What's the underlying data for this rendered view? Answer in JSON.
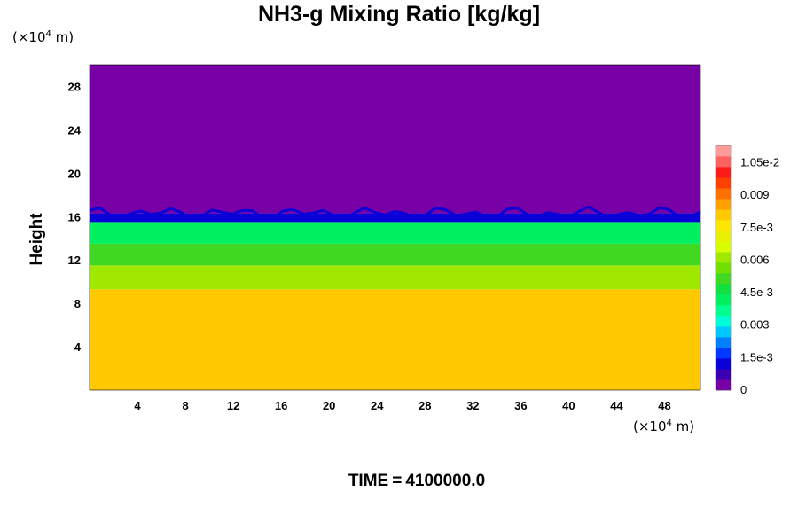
{
  "title": "NH3-g Mixing Ratio [kg/kg]",
  "x_unit": {
    "prefix": "(×10",
    "exp": "4",
    "suffix": " m)"
  },
  "y_unit": {
    "prefix": "(×10",
    "exp": "4",
    "suffix": " m)"
  },
  "ylabel": "Height",
  "time": {
    "label": "TIME",
    "eq": "=",
    "value": "4100000.0"
  },
  "chart_data": {
    "type": "heatmap",
    "title": "NH3-g Mixing Ratio [kg/kg]",
    "xlabel": "",
    "ylabel": "Height",
    "x_ticks": [
      "4",
      "8",
      "12",
      "16",
      "20",
      "24",
      "28",
      "32",
      "36",
      "40",
      "44",
      "48"
    ],
    "y_ticks": [
      "4",
      "8",
      "12",
      "16",
      "20",
      "24",
      "28"
    ],
    "xlim": [
      0,
      51
    ],
    "ylim": [
      0,
      30
    ],
    "layers": [
      {
        "from": 0,
        "to": 9.3,
        "value": 0.0079
      },
      {
        "from": 9.3,
        "to": 11.5,
        "value": 0.006
      },
      {
        "from": 11.5,
        "to": 13.5,
        "value": 0.005
      },
      {
        "from": 13.5,
        "to": 15.5,
        "value": 0.0043
      },
      {
        "from": 15.5,
        "to": 16.3,
        "value": 0.0012
      },
      {
        "from": 16.3,
        "to": 30,
        "value": 0.0
      }
    ],
    "colorbar": {
      "min": 0,
      "max": 0.0113,
      "tick_labels": [
        "0",
        "1.5e-3",
        "0.003",
        "4.5e-3",
        "0.006",
        "7.5e-3",
        "0.009",
        "1.05e-2"
      ],
      "tick_values": [
        0,
        0.0015,
        0.003,
        0.0045,
        0.006,
        0.0075,
        0.009,
        0.0105
      ],
      "colors": [
        "#7700a6",
        "#3c00b4",
        "#0a00d8",
        "#0038ff",
        "#0080ff",
        "#00c8ff",
        "#00ffd8",
        "#00ff90",
        "#00f060",
        "#10e040",
        "#40d820",
        "#70e000",
        "#a0e800",
        "#d8ff00",
        "#e8f000",
        "#ffe600",
        "#ffc800",
        "#ffa000",
        "#ff7000",
        "#ff4000",
        "#ff1a1a",
        "#ff6060",
        "#ff9a9a"
      ]
    }
  }
}
